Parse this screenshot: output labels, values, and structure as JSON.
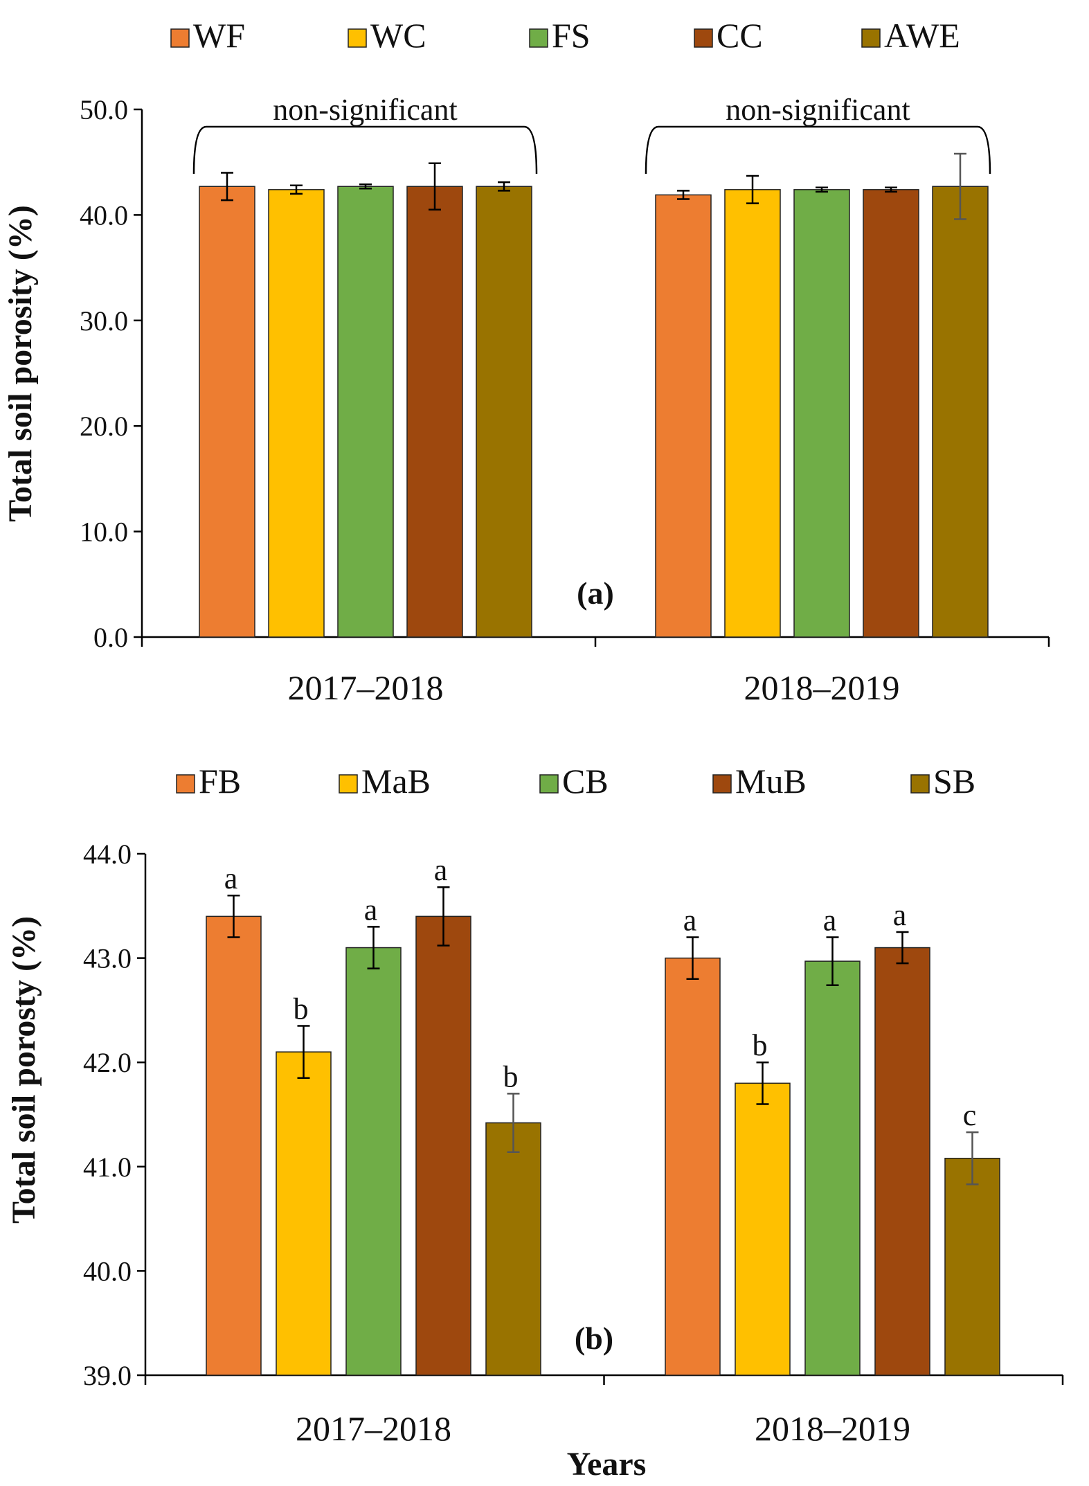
{
  "chart_data": [
    {
      "type": "bar",
      "panel_label": "(a)",
      "ylabel": "Total soil porosity (%)",
      "xlabel": "",
      "ylim": [
        0,
        50
      ],
      "yticks": [
        "0.0",
        "10.0",
        "20.0",
        "30.0",
        "40.0",
        "50.0"
      ],
      "categories": [
        "2017–2018",
        "2018–2019"
      ],
      "legend_position": "top",
      "series": [
        {
          "name": "WF",
          "color": "#ED7D31",
          "values": [
            42.7,
            41.9
          ],
          "errors": [
            1.3,
            0.4
          ]
        },
        {
          "name": "WC",
          "color": "#FFC000",
          "values": [
            42.4,
            42.4
          ],
          "errors": [
            0.4,
            1.3
          ]
        },
        {
          "name": "FS",
          "color": "#70AD47",
          "values": [
            42.7,
            42.4
          ],
          "errors": [
            0.2,
            0.2
          ]
        },
        {
          "name": "CC",
          "color": "#9E480E",
          "values": [
            42.7,
            42.4
          ],
          "errors": [
            2.2,
            0.2
          ]
        },
        {
          "name": "AWE",
          "color": "#997300",
          "values": [
            42.7,
            42.7
          ],
          "errors": [
            0.4,
            3.1
          ]
        }
      ],
      "annotations": [
        "non-significant",
        "non-significant"
      ]
    },
    {
      "type": "bar",
      "panel_label": "(b)",
      "ylabel": "Total soil porosty (%)",
      "xlabel": "Years",
      "ylim": [
        39,
        44
      ],
      "yticks": [
        "39.0",
        "40.0",
        "41.0",
        "42.0",
        "43.0",
        "44.0"
      ],
      "categories": [
        "2017–2018",
        "2018–2019"
      ],
      "legend_position": "top",
      "series": [
        {
          "name": "FB",
          "color": "#ED7D31",
          "values": [
            43.4,
            43.0
          ],
          "errors": [
            0.2,
            0.2
          ],
          "letters": [
            "a",
            "a"
          ]
        },
        {
          "name": "MaB",
          "color": "#FFC000",
          "values": [
            42.1,
            41.8
          ],
          "errors": [
            0.25,
            0.2
          ],
          "letters": [
            "b",
            "b"
          ]
        },
        {
          "name": "CB",
          "color": "#70AD47",
          "values": [
            43.1,
            42.97
          ],
          "errors": [
            0.2,
            0.23
          ],
          "letters": [
            "a",
            "a"
          ]
        },
        {
          "name": "MuB",
          "color": "#9E480E",
          "values": [
            43.4,
            43.1
          ],
          "errors": [
            0.28,
            0.15
          ],
          "letters": [
            "a",
            "a"
          ]
        },
        {
          "name": "SB",
          "color": "#997300",
          "values": [
            41.42,
            41.08
          ],
          "errors": [
            0.28,
            0.25
          ],
          "letters": [
            "b",
            "c"
          ]
        }
      ]
    }
  ]
}
